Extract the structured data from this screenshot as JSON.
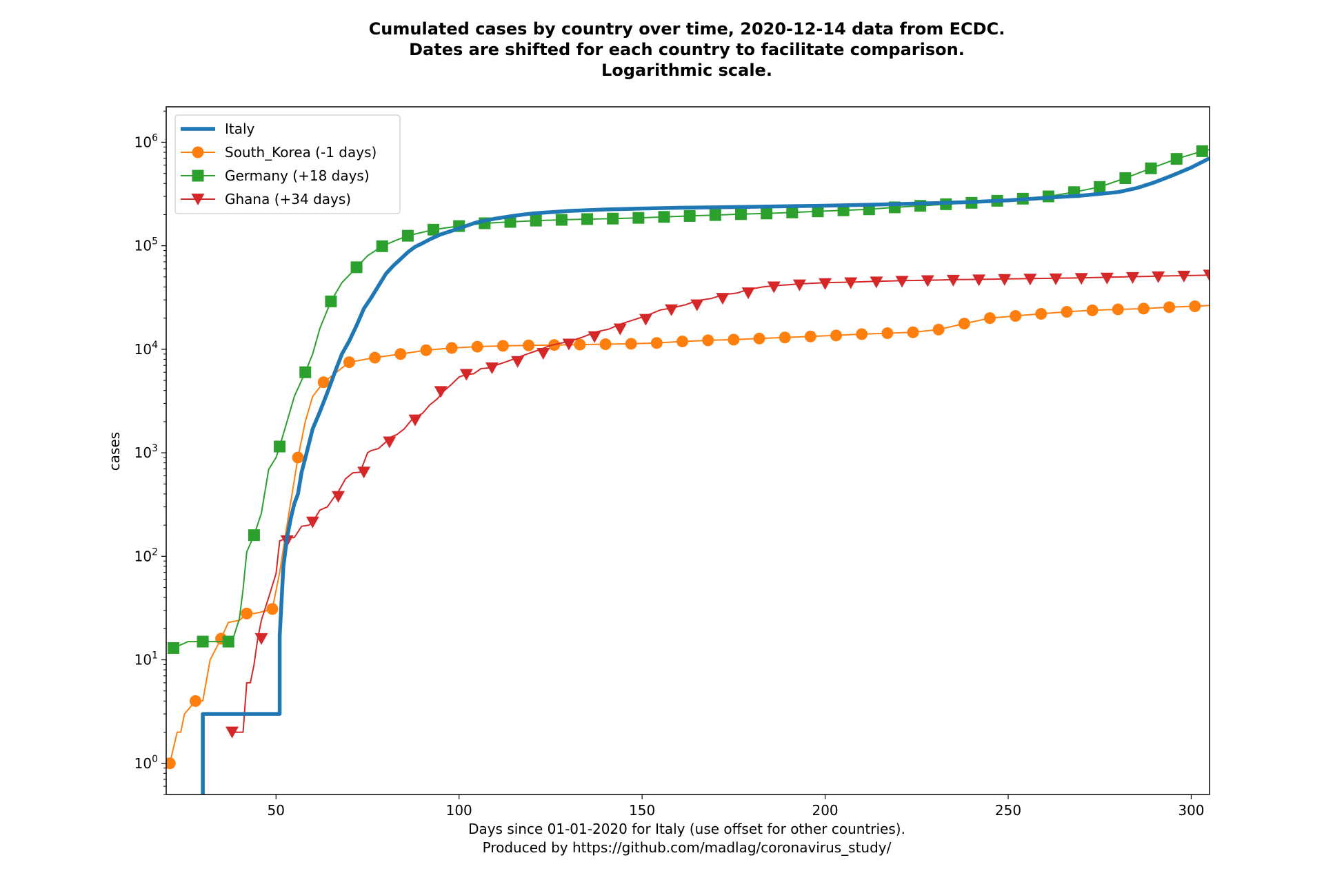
{
  "chart_data": {
    "type": "line",
    "title_lines": [
      "Cumulated cases by country over time, 2020-12-14 data from ECDC.",
      "Dates are shifted for each country to facilitate comparison.",
      "Logarithmic scale."
    ],
    "xlabel_lines": [
      "Days since 01-01-2020 for Italy (use offset for other countries).",
      "Produced by https://github.com/madlag/coronavirus_study/"
    ],
    "ylabel": "cases",
    "x_scale": "linear",
    "y_scale": "log",
    "xlim": [
      20,
      305
    ],
    "ylim": [
      0.5,
      2200000
    ],
    "x_ticks": [
      50,
      100,
      150,
      200,
      250,
      300
    ],
    "x_tick_labels": [
      "50",
      "100",
      "150",
      "200",
      "250",
      "300"
    ],
    "y_ticks": [
      1,
      10,
      100,
      1000,
      10000,
      100000,
      1000000
    ],
    "y_tick_labels": [
      {
        "base": "10",
        "exp": "0"
      },
      {
        "base": "10",
        "exp": "1"
      },
      {
        "base": "10",
        "exp": "2"
      },
      {
        "base": "10",
        "exp": "3"
      },
      {
        "base": "10",
        "exp": "4"
      },
      {
        "base": "10",
        "exp": "5"
      },
      {
        "base": "10",
        "exp": "6"
      }
    ],
    "grid": false,
    "legend_position": "top-left",
    "series": [
      {
        "name": "Italy",
        "color": "#1f77b4",
        "marker": "none",
        "line": "thick",
        "x": [
          30,
          30,
          51,
          51,
          52,
          53,
          54,
          55,
          56,
          57,
          58,
          60,
          62,
          64,
          66,
          68,
          70,
          72,
          74,
          76,
          78,
          80,
          82,
          84,
          86,
          88,
          90,
          92,
          95,
          98,
          100,
          105,
          110,
          115,
          120,
          130,
          140,
          150,
          160,
          170,
          180,
          190,
          200,
          210,
          220,
          230,
          240,
          250,
          260,
          270,
          280,
          285,
          290,
          295,
          300,
          305
        ],
        "y": [
          0.5,
          3,
          3,
          17,
          79,
          150,
          229,
          322,
          400,
          650,
          888,
          1700,
          2500,
          3800,
          5900,
          9000,
          12000,
          17000,
          24700,
          31500,
          41000,
          53500,
          63900,
          74400,
          86500,
          97700,
          105800,
          115200,
          128900,
          139400,
          147600,
          169000,
          183000,
          195000,
          205000,
          217000,
          224000,
          229000,
          233000,
          235000,
          238000,
          241000,
          244000,
          248000,
          253000,
          258000,
          265000,
          275000,
          290000,
          305000,
          330000,
          360000,
          410000,
          480000,
          570000,
          700000
        ]
      },
      {
        "name": "South_Korea (-1 days)",
        "color": "#ff7f0e",
        "marker": "circle",
        "x": [
          21,
          23,
          24,
          25,
          28,
          30,
          32,
          35,
          37,
          40,
          42,
          44,
          46,
          49,
          51,
          53,
          56,
          58,
          60,
          63,
          66,
          70,
          77,
          84,
          91,
          98,
          105,
          112,
          119,
          126,
          133,
          140,
          147,
          154,
          161,
          168,
          175,
          182,
          189,
          196,
          203,
          210,
          217,
          224,
          231,
          238,
          245,
          252,
          259,
          266,
          273,
          280,
          287,
          294,
          301,
          305
        ],
        "y": [
          1,
          2,
          2,
          3,
          4,
          4,
          10,
          16,
          23,
          24,
          28,
          28,
          29,
          31,
          70,
          200,
          900,
          2000,
          3500,
          4800,
          5800,
          7500,
          8300,
          9000,
          9800,
          10300,
          10600,
          10800,
          10900,
          11000,
          11100,
          11200,
          11300,
          11500,
          11900,
          12200,
          12400,
          12700,
          13000,
          13300,
          13600,
          14000,
          14300,
          14600,
          15500,
          17700,
          20000,
          21000,
          22000,
          23000,
          23800,
          24300,
          24700,
          25500,
          26000,
          26500
        ],
        "marker_x": [
          21,
          28,
          35,
          42,
          49,
          56,
          63,
          70,
          77,
          84,
          91,
          98,
          105,
          112,
          119,
          126,
          133,
          140,
          147,
          154,
          161,
          168,
          175,
          182,
          189,
          196,
          203,
          210,
          217,
          224,
          231,
          238,
          245,
          252,
          259,
          266,
          273,
          280,
          287,
          294,
          301
        ],
        "marker_y": [
          1,
          4,
          16,
          28,
          31,
          900,
          4800,
          7500,
          8300,
          9000,
          9800,
          10300,
          10600,
          10800,
          10900,
          11000,
          11100,
          11200,
          11300,
          11500,
          11900,
          12200,
          12400,
          12700,
          13000,
          13300,
          13600,
          14000,
          14300,
          14600,
          15500,
          17700,
          20000,
          21000,
          22000,
          23000,
          23800,
          24300,
          24700,
          25500,
          26000
        ]
      },
      {
        "name": "Germany (+18 days)",
        "color": "#2ca02c",
        "marker": "square",
        "x": [
          22,
          26,
          30,
          34,
          36,
          38,
          40,
          41,
          42,
          44,
          46,
          48,
          50,
          51,
          53,
          55,
          58,
          60,
          62,
          65,
          68,
          70,
          72,
          75,
          79,
          82,
          86,
          90,
          93,
          97,
          100,
          107,
          114,
          121,
          128,
          135,
          142,
          149,
          156,
          163,
          170,
          177,
          184,
          191,
          198,
          205,
          212,
          219,
          226,
          233,
          240,
          247,
          254,
          261,
          268,
          275,
          282,
          289,
          296,
          303,
          305
        ],
        "y": [
          13,
          15,
          15,
          15,
          15,
          15,
          25,
          48,
          110,
          160,
          260,
          690,
          900,
          1150,
          2000,
          3500,
          6000,
          9000,
          16000,
          29000,
          44000,
          52000,
          62000,
          80000,
          99000,
          110000,
          125000,
          135000,
          143000,
          150000,
          155000,
          165000,
          170000,
          175000,
          178000,
          181000,
          183000,
          186000,
          190000,
          194000,
          198000,
          202000,
          205000,
          210000,
          215000,
          220000,
          225000,
          235000,
          243000,
          252000,
          260000,
          272000,
          285000,
          300000,
          330000,
          370000,
          450000,
          560000,
          690000,
          820000,
          850000
        ],
        "marker_x": [
          22,
          30,
          37,
          44,
          51,
          58,
          65,
          72,
          79,
          86,
          93,
          100,
          107,
          114,
          121,
          128,
          135,
          142,
          149,
          156,
          163,
          170,
          177,
          184,
          191,
          198,
          205,
          212,
          219,
          226,
          233,
          240,
          247,
          254,
          261,
          268,
          275,
          282,
          289,
          296,
          303
        ],
        "marker_y": [
          13,
          15,
          15,
          160,
          1150,
          6000,
          29000,
          62000,
          99000,
          125000,
          143000,
          155000,
          165000,
          170000,
          175000,
          178000,
          181000,
          183000,
          186000,
          190000,
          194000,
          198000,
          202000,
          205000,
          210000,
          215000,
          220000,
          225000,
          235000,
          243000,
          252000,
          260000,
          272000,
          285000,
          300000,
          330000,
          370000,
          450000,
          560000,
          690000,
          820000
        ]
      },
      {
        "name": "Ghana (+34 days)",
        "color": "#d62728",
        "marker": "triangle-down",
        "x": [
          38,
          40,
          41,
          42,
          43,
          44,
          45,
          46,
          48,
          50,
          51,
          53,
          55,
          57,
          59,
          60,
          62,
          64,
          66,
          67,
          69,
          71,
          73,
          75,
          76,
          78,
          80,
          81,
          83,
          85,
          87,
          88,
          90,
          92,
          94,
          96,
          98,
          100,
          102,
          104,
          106,
          108,
          110,
          113,
          116,
          119,
          122,
          125,
          128,
          131,
          134,
          137,
          141,
          144,
          148,
          151,
          155,
          158,
          162,
          165,
          169,
          172,
          176,
          179,
          183,
          186,
          190,
          193,
          197,
          200,
          204,
          207,
          211,
          214,
          218,
          221,
          225,
          228,
          232,
          235,
          239,
          242,
          246,
          249,
          253,
          256,
          260,
          263,
          267,
          270,
          274,
          277,
          281,
          284,
          288,
          291,
          295,
          298,
          302,
          305
        ],
        "y": [
          2,
          2,
          2,
          6,
          6,
          9,
          16,
          24,
          40,
          68,
          141,
          150,
          152,
          195,
          200,
          214,
          280,
          300,
          378,
          420,
          560,
          640,
          650,
          1000,
          1050,
          1100,
          1270,
          1400,
          1500,
          1700,
          2070,
          2200,
          2400,
          2900,
          3300,
          4000,
          4600,
          5400,
          5700,
          5800,
          6500,
          6600,
          7000,
          7600,
          8300,
          9100,
          9900,
          10900,
          11500,
          12200,
          13200,
          14600,
          15700,
          17500,
          19400,
          21000,
          24000,
          25000,
          27000,
          29500,
          31000,
          33600,
          35000,
          37800,
          40000,
          41000,
          42000,
          42800,
          43500,
          44000,
          44300,
          44500,
          45000,
          45300,
          45700,
          46000,
          46200,
          46400,
          46700,
          47000,
          47200,
          47400,
          47600,
          47800,
          48000,
          48200,
          48400,
          48600,
          48800,
          49000,
          49300,
          49600,
          50000,
          50300,
          50600,
          51000,
          51300,
          51500,
          51800,
          52000
        ],
        "marker_x": [
          38,
          46,
          53,
          60,
          67,
          74,
          81,
          88,
          95,
          102,
          109,
          116,
          123,
          130,
          137,
          144,
          151,
          158,
          165,
          172,
          179,
          186,
          193,
          200,
          207,
          214,
          221,
          228,
          235,
          242,
          249,
          256,
          263,
          270,
          277,
          284,
          291,
          298,
          305
        ],
        "marker_y": [
          2,
          16,
          141,
          214,
          378,
          650,
          1270,
          2070,
          3900,
          5700,
          6600,
          7600,
          9100,
          11200,
          13200,
          15700,
          19400,
          24000,
          26800,
          31000,
          35000,
          40000,
          41800,
          43000,
          43800,
          44600,
          45300,
          45900,
          46300,
          46700,
          47100,
          47500,
          47800,
          48200,
          48600,
          49200,
          50000,
          50800,
          52000
        ]
      }
    ]
  }
}
